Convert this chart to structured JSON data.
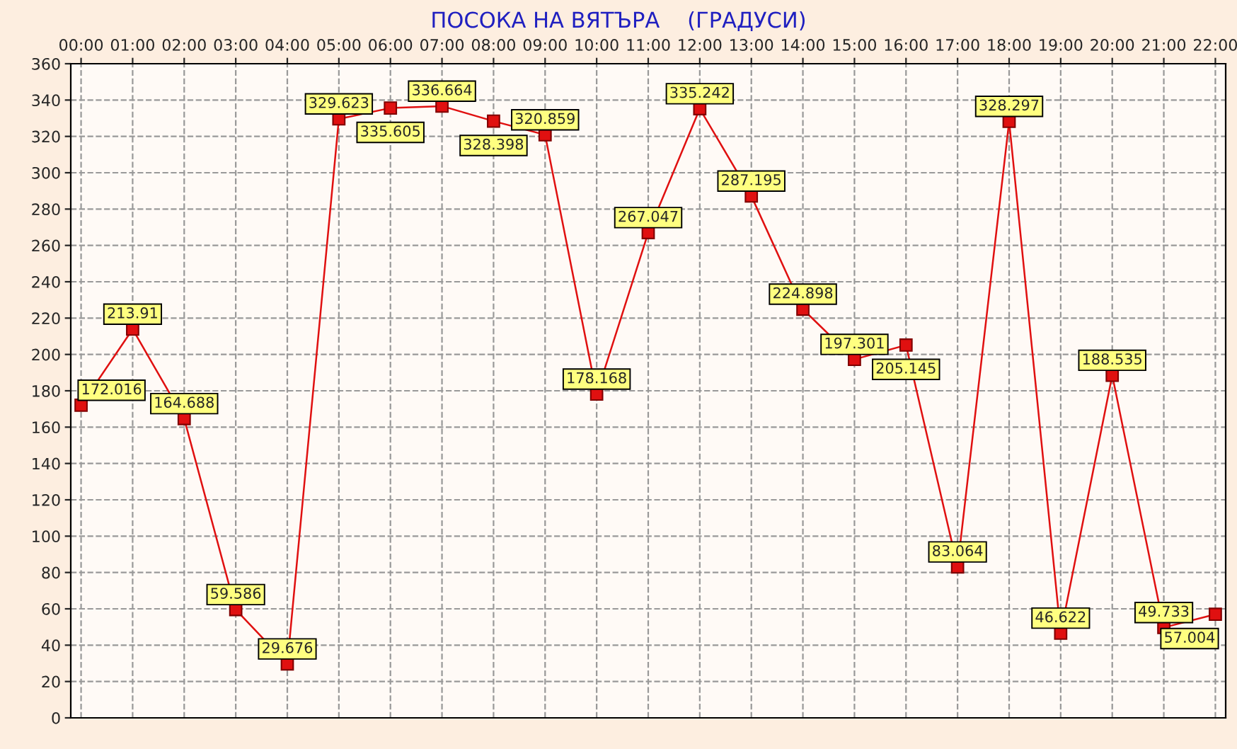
{
  "chart_data": {
    "type": "line",
    "title": "ПОСОКА НА ВЯТЪРА    (ГРАДУСИ)",
    "categories": [
      "00:00",
      "01:00",
      "02:00",
      "03:00",
      "04:00",
      "05:00",
      "06:00",
      "07:00",
      "08:00",
      "09:00",
      "10:00",
      "11:00",
      "12:00",
      "13:00",
      "14:00",
      "15:00",
      "16:00",
      "17:00",
      "18:00",
      "19:00",
      "20:00",
      "21:00",
      "22:00"
    ],
    "series": [
      {
        "color": "#e01010",
        "values": [
          172.016,
          213.91,
          164.688,
          59.586,
          29.676,
          329.623,
          335.605,
          336.664,
          328.398,
          320.859,
          178.168,
          267.047,
          335.242,
          287.195,
          224.898,
          197.301,
          205.145,
          83.064,
          328.297,
          46.622,
          188.535,
          49.733,
          57.004
        ]
      }
    ],
    "ylim": [
      0,
      360
    ],
    "yticks": [
      0,
      20,
      40,
      60,
      80,
      100,
      120,
      140,
      160,
      180,
      200,
      220,
      240,
      260,
      280,
      300,
      320,
      340,
      360
    ],
    "grid": true,
    "marker": "square",
    "line_style": "solid",
    "data_labels": true
  }
}
